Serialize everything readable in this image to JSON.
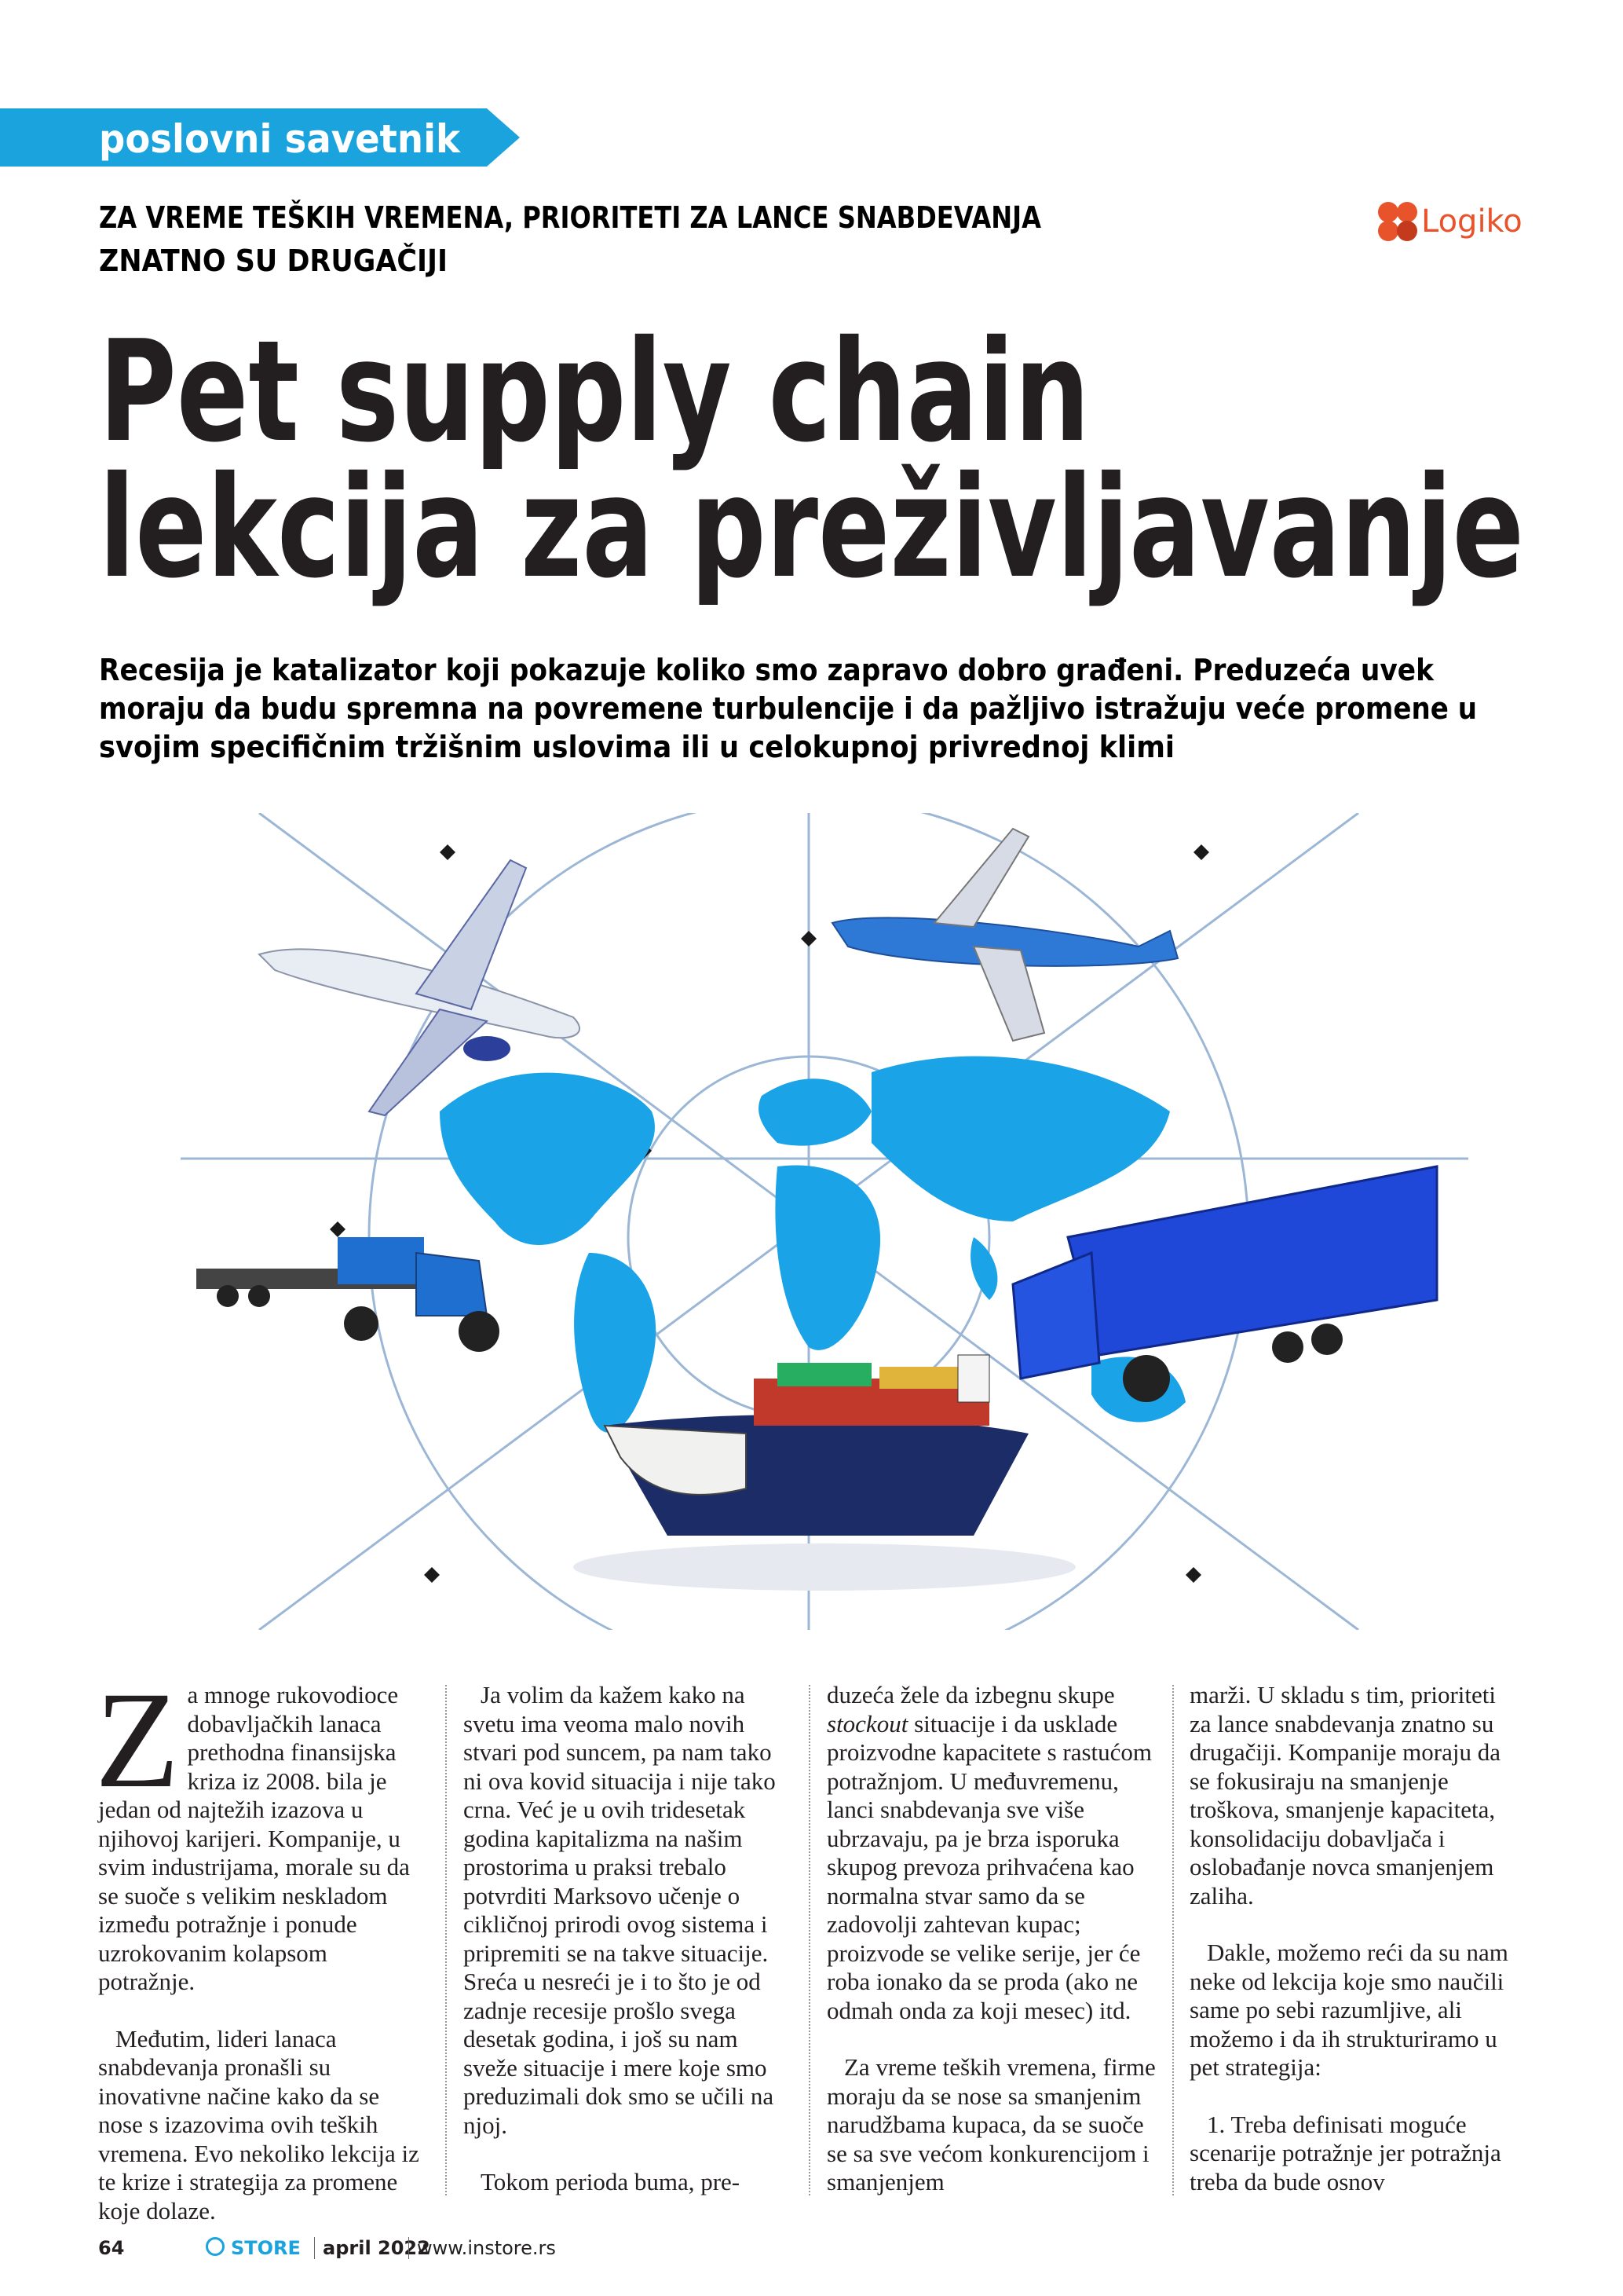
{
  "header": {
    "section": "poslovni savetnik",
    "kicker": [
      "ZA VREME TEŠKIH VREMENA, PRIORITETI ZA LANCE SNABDEVANJA",
      "ZNATNO SU DRUGAČIJI"
    ],
    "logo": "Logiko"
  },
  "title": [
    "Pet supply chain",
    "lekcija za preživljavanje"
  ],
  "lead": [
    "Recesija je katalizator koji pokazuje koliko smo zapravo dobro građeni. Preduzeća uvek",
    "moraju da budu spremna na povremene turbulencije i da pažljivo istražuju veće promene u",
    "svojim specifičnim tržišnim uslovima ili u celokupnoj privrednoj klimi"
  ],
  "body": {
    "drop_cap": "Z",
    "columns": [
      [
        "a mnoge rukovodioce dobavljačkih lanaca prethodna finansijska kriza iz 2008. bila je jedan od najtežih izazova u njihovoj karijeri. Kompanije, u svim industrijama, morale su da se suoče s velikim neskladom između potražnje i ponude uzrokovanim kolapsom potražnje.",
        "Međutim, lideri lanaca snabdevanja pronašli su inovativne načine kako da se nose s izazovima ovih teških vremena. Evo nekoliko lekcija iz te krize i strategija za promene koje dolaze."
      ],
      [
        "Ja volim da kažem kako na svetu ima veoma malo novih stvari pod suncem, pa nam tako ni ova kovid situacija i nije tako crna. Već je u ovih tridesetak godina kapitalizma na našim prostorima u praksi trebalo potvrditi Marksovo učenje o cikličnoj prirodi ovog sistema i pripremiti se na takve situacije. Sreća u nesreći je i to što je od zadnje recesije prošlo svega desetak godina, i još su nam sveže situacije i mere koje smo preduzimali dok smo se učili na njoj.",
        "Tokom perioda buma, pre-"
      ],
      [
        {
          "before": "duzeća žele da izbegnu skupe ",
          "em": "stockout",
          "after": " situacije i da usklade proizvodne kapacitete s rastućom potražnjom. U međuvremenu, lanci snabdevanja sve više ubrzavaju, pa je brza isporuka skupog prevoza prihvaćena kao normalna stvar samo da se zadovolji zahtevan kupac; proizvode se velike serije, jer će roba ionako da se proda (ako ne odmah onda za koji mesec) itd."
        },
        "Za vreme teških vremena, firme moraju da se nose sa smanjenim narudžbama kupaca, da se suoče se sa sve većom konkurencijom i smanjenjem"
      ],
      [
        "marži. U skladu s tim, prioriteti za lance snabdevanja znatno su drugačiji. Kompanije moraju da se fokusiraju na smanjenje troškova, smanjenje kapaciteta, konsolidaciju dobavljača i oslobađanje novca smanjenjem zaliha.",
        "Dakle, možemo reći da su nam neke od lekcija koje smo naučili same po sebi razumljive, ali možemo i da ih strukturiramo u pet strategija:",
        "1. Treba definisati moguće scenarije potražnje jer potražnja treba da bude osnov"
      ]
    ]
  },
  "footer": {
    "page": "64",
    "brand": "STORE",
    "issue": "april 2022",
    "url": "www.instore.rs"
  }
}
